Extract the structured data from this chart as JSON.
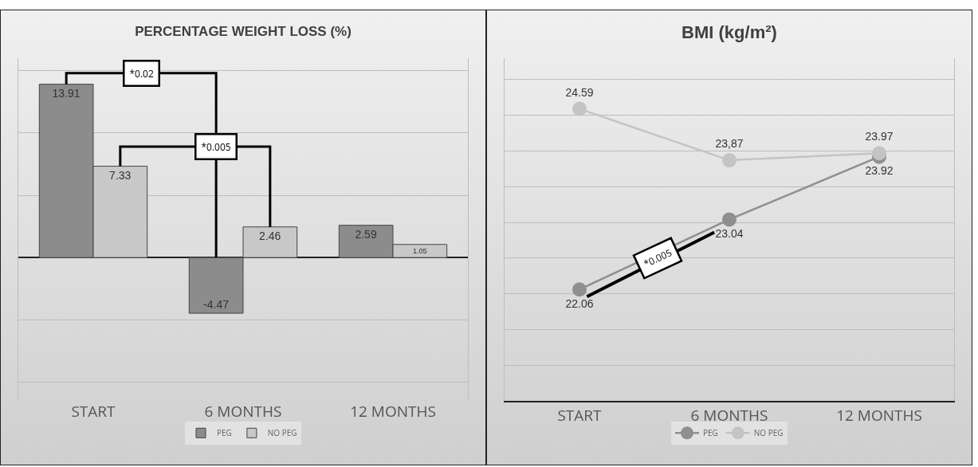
{
  "chart_data": [
    {
      "type": "bar",
      "title": "PERCENTAGE WEIGHT LOSS (%)",
      "categories": [
        "START",
        "6 MONTHS",
        "12 MONTHS"
      ],
      "series": [
        {
          "name": "PEG",
          "color": "#8c8c8c",
          "values": [
            13.91,
            -4.47,
            2.59
          ]
        },
        {
          "name": "NO PEG",
          "color": "#c8c8c8",
          "values": [
            7.33,
            2.46,
            1.05
          ]
        }
      ],
      "data_labels": true,
      "ylim": [
        -11.5,
        16
      ],
      "yticks": [
        {
          "value": -10,
          "label": null
        },
        {
          "value": -5,
          "label": null
        },
        {
          "value": 0,
          "label": null
        },
        {
          "value": 5,
          "label": null
        },
        {
          "value": 10,
          "label": null
        },
        {
          "value": 15,
          "label": null
        }
      ],
      "tick_labels": "x",
      "grid": "y",
      "legend": "bottom",
      "annotations": [
        "*0.02",
        "*0.005"
      ]
    },
    {
      "type": "line",
      "title": "BMI (kg/m²)",
      "categories": [
        "START",
        "6 MONTHS",
        "12 MONTHS"
      ],
      "series": [
        {
          "name": "PEG",
          "color": "#8f8f8f",
          "values": [
            22.06,
            23.04,
            23.92
          ],
          "value_labels": [
            "22.06",
            "23.04",
            "23.92"
          ]
        },
        {
          "name": "NO PEG",
          "color": "#c4c4c4",
          "values": [
            24.59,
            23.87,
            23.97
          ],
          "value_labels": [
            "24.59",
            "23,87",
            "23.97"
          ]
        }
      ],
      "ylim": [
        20.5,
        25.3
      ],
      "yticks": [
        {
          "value": 20.5,
          "label": null
        },
        {
          "value": 21,
          "label": null
        },
        {
          "value": 21.5,
          "label": null
        },
        {
          "value": 22,
          "label": null
        },
        {
          "value": 22.5,
          "label": null
        },
        {
          "value": 23,
          "label": null
        },
        {
          "value": 23.5,
          "label": null
        },
        {
          "value": 24,
          "label": null
        },
        {
          "value": 24.5,
          "label": null
        },
        {
          "value": 25,
          "label": null
        }
      ],
      "tick_labels": "x",
      "grid": "y",
      "legend": "bottom",
      "marker": "circle",
      "line_style": "solid",
      "annotations": [
        "*0.005"
      ]
    }
  ]
}
